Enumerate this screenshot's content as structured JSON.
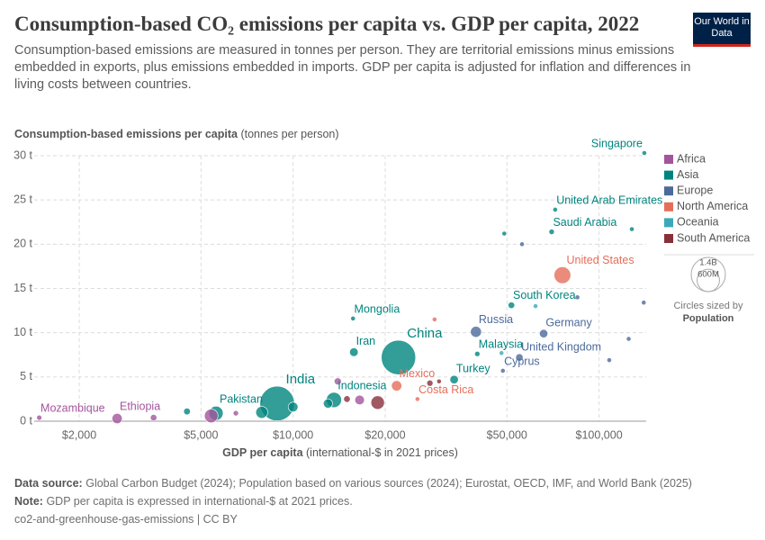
{
  "chart_data": {
    "type": "scatter",
    "title": "Consumption-based CO₂ emissions per capita vs. GDP per capita, 2022",
    "subtitle": "Consumption-based emissions are measured in tonnes per person. They are territorial emissions minus emissions embedded in exports, plus emissions embedded in imports. GDP per capita is adjusted for inflation and differences in living costs between countries.",
    "logo": "Our World in Data",
    "y_label": "Consumption-based emissions per capita",
    "y_label_unit": "(tonnes per person)",
    "x_label": "GDP per capita",
    "x_label_unit": "(international-$ in 2021 prices)",
    "x_scale": "log",
    "xlim": [
      1425,
      142600
    ],
    "ylim": [
      0,
      30
    ],
    "grid": true,
    "xticks": [
      {
        "value": 2000,
        "label": "$2,000"
      },
      {
        "value": 5000,
        "label": "$5,000"
      },
      {
        "value": 10000,
        "label": "$10,000"
      },
      {
        "value": 20000,
        "label": "$20,000"
      },
      {
        "value": 50000,
        "label": "$50,000"
      },
      {
        "value": 100000,
        "label": "$100,000"
      }
    ],
    "yticks": [
      {
        "value": 0,
        "label": "0 t"
      },
      {
        "value": 5,
        "label": "5 t"
      },
      {
        "value": 10,
        "label": "10 t"
      },
      {
        "value": 15,
        "label": "15 t"
      },
      {
        "value": 20,
        "label": "20 t"
      },
      {
        "value": 25,
        "label": "25 t"
      },
      {
        "value": 30,
        "label": "30 t"
      }
    ],
    "size_legend": {
      "title": "Circles sized by",
      "variable": "Population",
      "sizes": [
        {
          "value": 1400000000,
          "label": "1.4B"
        },
        {
          "value": 600000000,
          "label": "600M"
        }
      ]
    },
    "series": [
      {
        "name": "Africa",
        "color": "#a2559c",
        "points": [
          {
            "label": "Mozambique",
            "x": 1480,
            "y": 0.4,
            "size": 33000000
          },
          {
            "label": "Ethiopia",
            "x": 2660,
            "y": 0.3,
            "size": 125000000
          },
          {
            "x": 5400,
            "y": 0.6,
            "size": 220000000
          },
          {
            "x": 14000,
            "y": 4.5,
            "size": 60000000
          },
          {
            "x": 16500,
            "y": 2.4,
            "size": 110000000
          },
          {
            "x": 3500,
            "y": 0.4,
            "size": 50000000
          },
          {
            "x": 6500,
            "y": 0.9,
            "size": 35000000
          }
        ]
      },
      {
        "name": "Asia",
        "color": "#00847e",
        "points": [
          {
            "label": "Singapore",
            "x": 140600,
            "y": 30.3,
            "size": 6000000
          },
          {
            "label": "United Arab Emirates",
            "x": 71900,
            "y": 23.9,
            "size": 9500000
          },
          {
            "label": "Saudi Arabia",
            "x": 70000,
            "y": 21.4,
            "size": 36000000
          },
          {
            "label": "South Korea",
            "x": 51700,
            "y": 13.1,
            "size": 52000000
          },
          {
            "label": "Mongolia",
            "x": 15700,
            "y": 11.6,
            "size": 3400000
          },
          {
            "label": "Iran",
            "x": 15800,
            "y": 7.8,
            "size": 89000000
          },
          {
            "label": "China",
            "x": 22100,
            "y": 7.2,
            "size": 1410000000
          },
          {
            "label": "Malaysia",
            "x": 40000,
            "y": 7.6,
            "size": 34000000
          },
          {
            "label": "Turkey",
            "x": 33600,
            "y": 4.7,
            "size": 85000000
          },
          {
            "label": "Indonesia",
            "x": 13600,
            "y": 2.4,
            "size": 275000000
          },
          {
            "label": "India",
            "x": 8870,
            "y": 2.0,
            "size": 1430000000
          },
          {
            "label": "Pakistan",
            "x": 5600,
            "y": 0.9,
            "size": 240000000
          },
          {
            "x": 7900,
            "y": 1.0,
            "size": 170000000
          },
          {
            "x": 4500,
            "y": 1.1,
            "size": 54000000
          },
          {
            "x": 10000,
            "y": 1.6,
            "size": 115000000
          },
          {
            "x": 13000,
            "y": 2.0,
            "size": 100000000
          },
          {
            "x": 128000,
            "y": 21.7,
            "size": 3000000
          },
          {
            "x": 49000,
            "y": 21.2,
            "size": 4500000
          }
        ]
      },
      {
        "name": "Europe",
        "color": "#4c6a9c",
        "points": [
          {
            "label": "Russia",
            "x": 39600,
            "y": 10.1,
            "size": 144000000
          },
          {
            "label": "Germany",
            "x": 65900,
            "y": 9.9,
            "size": 84000000
          },
          {
            "label": "United Kingdom",
            "x": 54900,
            "y": 7.2,
            "size": 67000000
          },
          {
            "label": "Cyprus",
            "x": 48500,
            "y": 5.7,
            "size": 1300000
          },
          {
            "x": 108000,
            "y": 6.9,
            "size": 5000000
          },
          {
            "x": 125000,
            "y": 9.3,
            "size": 600000
          },
          {
            "x": 140000,
            "y": 13.4,
            "size": 660000
          },
          {
            "x": 85000,
            "y": 14.0,
            "size": 5400000
          },
          {
            "x": 56000,
            "y": 20.0,
            "size": 1000000
          }
        ]
      },
      {
        "name": "North America",
        "color": "#e56e5a",
        "points": [
          {
            "label": "United States",
            "x": 75900,
            "y": 16.5,
            "size": 335000000
          },
          {
            "label": "Mexico",
            "x": 21800,
            "y": 4.0,
            "size": 128000000
          },
          {
            "label": "Costa Rica",
            "x": 25500,
            "y": 2.5,
            "size": 5200000
          },
          {
            "x": 29000,
            "y": 11.5,
            "size": 400000
          }
        ]
      },
      {
        "name": "Oceania",
        "color": "#38aaba",
        "points": [
          {
            "x": 62000,
            "y": 13.0,
            "size": 26000000
          },
          {
            "x": 48000,
            "y": 7.7,
            "size": 5100000
          }
        ]
      },
      {
        "name": "South America",
        "color": "#883039",
        "points": [
          {
            "x": 18900,
            "y": 2.1,
            "size": 216000000
          },
          {
            "x": 28000,
            "y": 4.3,
            "size": 46000000
          },
          {
            "x": 15000,
            "y": 2.5,
            "size": 52000000
          },
          {
            "x": 30000,
            "y": 4.5,
            "size": 19000000
          }
        ]
      }
    ],
    "footer": {
      "source_label": "Data source:",
      "source": "Global Carbon Budget (2024); Population based on various sources (2024); Eurostat, OECD, IMF, and World Bank (2025)",
      "note_label": "Note:",
      "note": "GDP per capita is expressed in international-$ at 2021 prices.",
      "license": "co2-and-greenhouse-gas-emissions | CC BY"
    }
  }
}
